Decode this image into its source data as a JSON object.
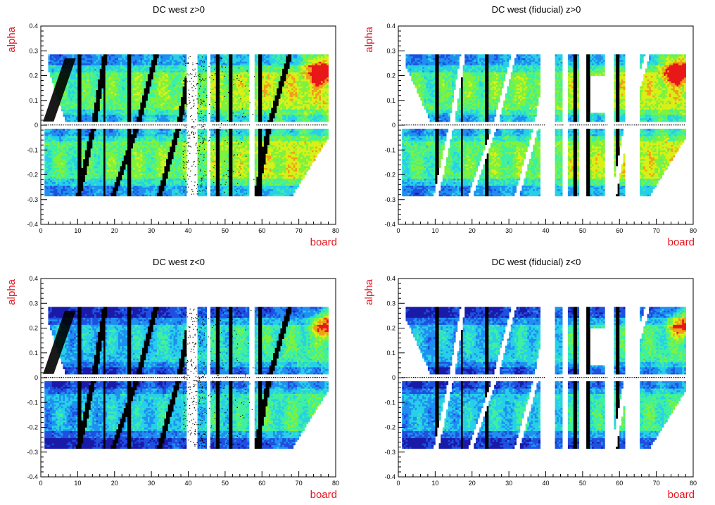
{
  "colors": {
    "axis_label": "#e8141e",
    "frame": "#000000",
    "palette": [
      "#ffffff",
      "#1a1aa8",
      "#1f4fe0",
      "#1f8ff0",
      "#27d0e8",
      "#3ef0a0",
      "#7ef23c",
      "#d8f018",
      "#f0a018",
      "#e81818"
    ]
  },
  "chart_data": [
    {
      "type": "heatmap",
      "title": "DC west z>0",
      "xlabel": "board",
      "ylabel": "alpha",
      "xlim": [
        0,
        80
      ],
      "ylim": [
        -0.4,
        0.4
      ],
      "x_ticks": [
        0,
        10,
        20,
        30,
        40,
        50,
        60,
        70,
        80
      ],
      "y_ticks": [
        0.4,
        0.3,
        0.2,
        0.1,
        0,
        -0.1,
        -0.2,
        -0.3,
        -0.4
      ],
      "x_tick_labels": [
        "0",
        "10",
        "20",
        "30",
        "40",
        "50",
        "60",
        "70",
        "80"
      ],
      "y_tick_labels": [
        "0.4",
        "0.3",
        "0.2",
        "0.1",
        "0",
        "-0.1",
        "-0.2",
        "-0.3",
        "-0.4"
      ],
      "intensity": "high",
      "hotspot": [
        76,
        0.23
      ],
      "fiducial": false
    },
    {
      "type": "heatmap",
      "title": "DC west (fiducial) z>0",
      "xlabel": "board",
      "ylabel": "alpha",
      "xlim": [
        0,
        80
      ],
      "ylim": [
        -0.4,
        0.4
      ],
      "x_ticks": [
        0,
        10,
        20,
        30,
        40,
        50,
        60,
        70,
        80
      ],
      "y_ticks": [
        0.4,
        0.3,
        0.2,
        0.1,
        0,
        -0.1,
        -0.2,
        -0.3,
        -0.4
      ],
      "x_tick_labels": [
        "0",
        "10",
        "20",
        "30",
        "40",
        "50",
        "60",
        "70",
        "80"
      ],
      "y_tick_labels": [
        "0.4",
        "0.3",
        "0.2",
        "0.1",
        "0",
        "-0.1",
        "-0.2",
        "-0.3",
        "-0.4"
      ],
      "intensity": "high",
      "hotspot": [
        76,
        0.23
      ],
      "fiducial": true
    },
    {
      "type": "heatmap",
      "title": "DC west z<0",
      "xlabel": "board",
      "ylabel": "alpha",
      "xlim": [
        0,
        80
      ],
      "ylim": [
        -0.4,
        0.4
      ],
      "x_ticks": [
        0,
        10,
        20,
        30,
        40,
        50,
        60,
        70,
        80
      ],
      "y_ticks": [
        0.4,
        0.3,
        0.2,
        0.1,
        0,
        -0.1,
        -0.2,
        -0.3,
        -0.4
      ],
      "x_tick_labels": [
        "0",
        "10",
        "20",
        "30",
        "40",
        "50",
        "60",
        "70",
        "80"
      ],
      "y_tick_labels": [
        "0.4",
        "0.3",
        "0.2",
        "0.1",
        "0",
        "-0.1",
        "-0.2",
        "-0.3",
        "-0.4"
      ],
      "intensity": "low",
      "hotspot": [
        78,
        0.22
      ],
      "fiducial": false
    },
    {
      "type": "heatmap",
      "title": "DC west (fiducial) z<0",
      "xlabel": "board",
      "ylabel": "alpha",
      "xlim": [
        0,
        80
      ],
      "ylim": [
        -0.4,
        0.4
      ],
      "x_ticks": [
        0,
        10,
        20,
        30,
        40,
        50,
        60,
        70,
        80
      ],
      "y_ticks": [
        0.4,
        0.3,
        0.2,
        0.1,
        0,
        -0.1,
        -0.2,
        -0.3,
        -0.4
      ],
      "x_tick_labels": [
        "0",
        "10",
        "20",
        "30",
        "40",
        "50",
        "60",
        "70",
        "80"
      ],
      "y_tick_labels": [
        "0.4",
        "0.3",
        "0.2",
        "0.1",
        "0",
        "-0.1",
        "-0.2",
        "-0.3",
        "-0.4"
      ],
      "intensity": "low",
      "hotspot": [
        78,
        0.22
      ],
      "fiducial": true
    }
  ]
}
